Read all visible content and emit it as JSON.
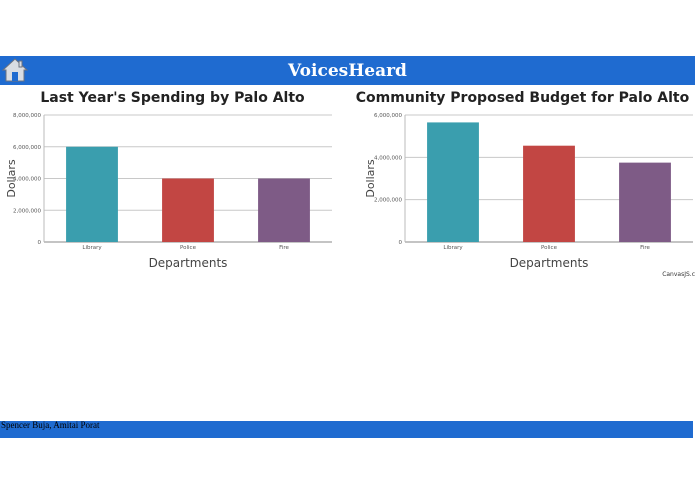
{
  "header": {
    "title": "VoicesHeard",
    "home_icon": "home-icon"
  },
  "footer": {
    "authors": "Spencer Buja, Amitai Porat"
  },
  "credit": "CanvasJS.c",
  "colors": {
    "header_bg": "#1f6bd0",
    "library": "#3a9eae",
    "police": "#c24643",
    "fire": "#7e5b86"
  },
  "chart_data": [
    {
      "type": "bar",
      "title": "Last Year's Spending by Palo Alto",
      "xlabel": "Departments",
      "ylabel": "Dollars",
      "categories": [
        "Library",
        "Police",
        "Fire"
      ],
      "values": [
        6000000,
        4000000,
        4000000
      ],
      "ylim": [
        0,
        8000000
      ],
      "yticks": [
        "0",
        "2,000,000",
        "4,000,000",
        "6,000,000",
        "8,000,000"
      ],
      "grid": true
    },
    {
      "type": "bar",
      "title": "Community Proposed Budget for Palo Alto",
      "xlabel": "Departments",
      "ylabel": "Dollars",
      "categories": [
        "Library",
        "Police",
        "Fire"
      ],
      "values": [
        5650000,
        4550000,
        3750000
      ],
      "ylim": [
        0,
        6000000
      ],
      "yticks": [
        "0",
        "2,000,000",
        "4,000,000",
        "6,000,000"
      ],
      "grid": true
    }
  ]
}
